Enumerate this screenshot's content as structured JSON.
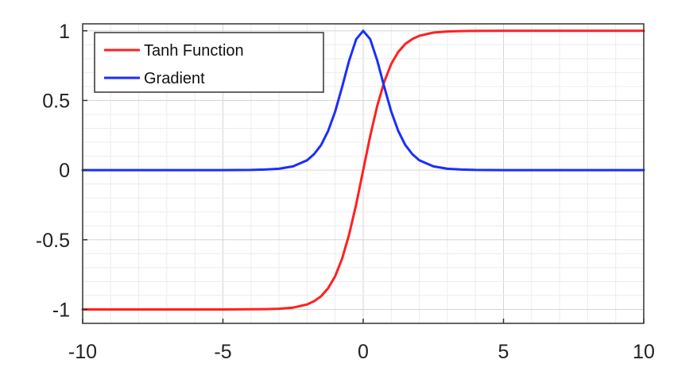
{
  "chart_data": {
    "type": "line",
    "title": "",
    "xlabel": "",
    "ylabel": "",
    "xlim": [
      -10,
      10
    ],
    "ylim": [
      -1.1,
      1.05
    ],
    "xticks": [
      -10,
      -5,
      0,
      5,
      10
    ],
    "xtick_labels": [
      "-10",
      "-5",
      "0",
      "5",
      "10"
    ],
    "yticks": [
      -1,
      -0.5,
      0,
      0.5,
      1
    ],
    "ytick_labels": [
      "-1",
      "-0.5",
      "0",
      "0.5",
      "1"
    ],
    "minor_grid_x_step": 1,
    "minor_grid_y_step": 0.1,
    "grid": true,
    "legend_position": "top-left",
    "x": [
      -10,
      -8,
      -6,
      -5,
      -4,
      -3.5,
      -3,
      -2.5,
      -2,
      -1.75,
      -1.5,
      -1.25,
      -1,
      -0.75,
      -0.5,
      -0.25,
      0,
      0.25,
      0.5,
      0.75,
      1,
      1.25,
      1.5,
      1.75,
      2,
      2.5,
      3,
      3.5,
      4,
      5,
      6,
      8,
      10
    ],
    "series": [
      {
        "name": "Tanh Function",
        "color": "#ff2020",
        "values": [
          -1,
          -1,
          -1,
          -1,
          -0.999,
          -0.998,
          -0.995,
          -0.987,
          -0.964,
          -0.941,
          -0.905,
          -0.848,
          -0.762,
          -0.635,
          -0.462,
          -0.245,
          0,
          0.245,
          0.462,
          0.635,
          0.762,
          0.848,
          0.905,
          0.941,
          0.964,
          0.987,
          0.995,
          0.998,
          0.999,
          1,
          1,
          1,
          1
        ]
      },
      {
        "name": "Gradient",
        "color": "#1a2eff",
        "values": [
          0,
          0,
          0,
          0,
          0.001,
          0.004,
          0.01,
          0.027,
          0.071,
          0.115,
          0.181,
          0.281,
          0.42,
          0.597,
          0.786,
          0.94,
          1,
          0.94,
          0.786,
          0.597,
          0.42,
          0.281,
          0.181,
          0.115,
          0.071,
          0.027,
          0.01,
          0.004,
          0.001,
          0,
          0,
          0,
          0
        ]
      }
    ]
  }
}
